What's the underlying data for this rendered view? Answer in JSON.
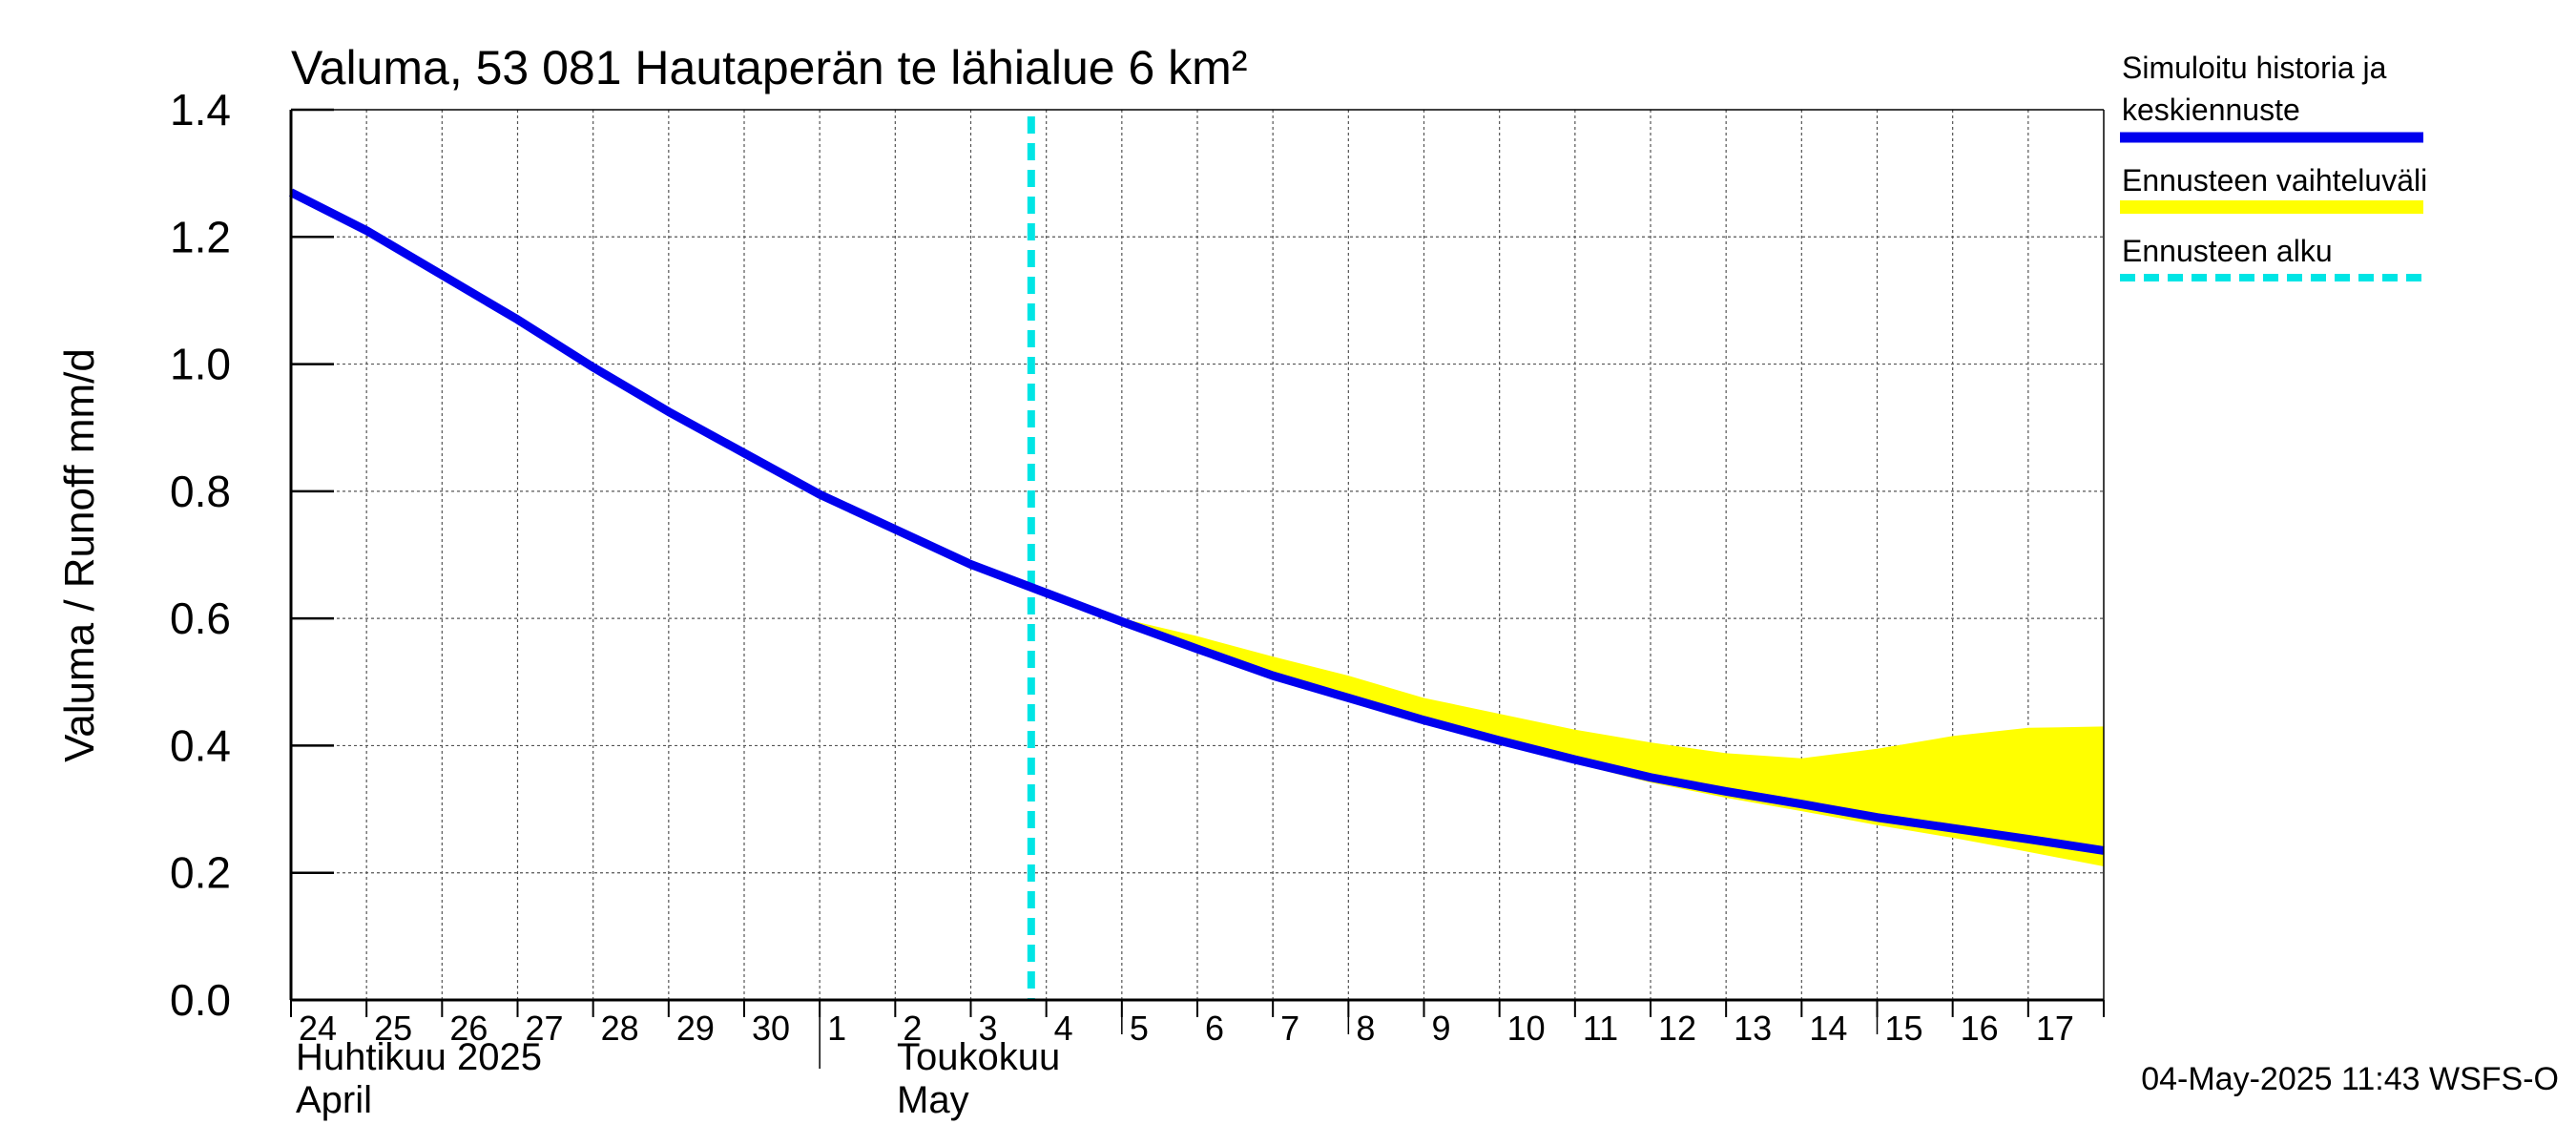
{
  "chart_data": {
    "type": "line",
    "title": "Valuma, 53 081 Hautaperän te lähialue 6 km²",
    "ylabel": "Valuma / Runoff    mm/d",
    "ylim": [
      0,
      1.4
    ],
    "yticks": [
      "0.0",
      "0.2",
      "0.4",
      "0.6",
      "0.8",
      "1.0",
      "1.2",
      "1.4"
    ],
    "x_day_labels": [
      "24",
      "25",
      "26",
      "27",
      "28",
      "29",
      "30",
      "1",
      "2",
      "3",
      "4",
      "5",
      "6",
      "7",
      "8",
      "9",
      "10",
      "11",
      "12",
      "13",
      "14",
      "15",
      "16",
      "17"
    ],
    "month_labels": [
      {
        "fi": "Huhtikuu  2025",
        "en": "April"
      },
      {
        "fi": "Toukokuu",
        "en": "May"
      }
    ],
    "forecast_start_day_index": 9.8,
    "series": [
      {
        "name": "Simuloitu historia ja keskiennuste",
        "color": "#0000ee",
        "x": [
          0,
          1,
          2,
          3,
          4,
          5,
          6,
          7,
          8,
          9,
          10,
          11,
          12,
          13,
          14,
          15,
          16,
          17,
          18,
          19,
          20,
          21,
          22,
          23,
          24
        ],
        "values": [
          1.27,
          1.21,
          1.14,
          1.07,
          0.995,
          0.925,
          0.86,
          0.795,
          0.74,
          0.685,
          0.64,
          0.595,
          0.552,
          0.51,
          0.475,
          0.44,
          0.408,
          0.378,
          0.35,
          0.328,
          0.308,
          0.287,
          0.27,
          0.253,
          0.235
        ]
      }
    ],
    "band": {
      "name": "Ennusteen vaihteluväli",
      "color": "#ffff00",
      "x": [
        10,
        11,
        12,
        13,
        14,
        15,
        16,
        17,
        18,
        19,
        20,
        21,
        22,
        23,
        24
      ],
      "upper": [
        0.64,
        0.6,
        0.572,
        0.54,
        0.51,
        0.475,
        0.45,
        0.425,
        0.405,
        0.388,
        0.38,
        0.395,
        0.415,
        0.428,
        0.43
      ],
      "lower": [
        0.64,
        0.595,
        0.55,
        0.508,
        0.47,
        0.435,
        0.403,
        0.372,
        0.342,
        0.318,
        0.297,
        0.275,
        0.255,
        0.233,
        0.21
      ]
    },
    "legend": [
      {
        "label_line1": "Simuloitu historia ja",
        "label_line2": "keskiennuste",
        "color": "#0000ee",
        "style": "solid"
      },
      {
        "label_line1": "Ennusteen vaihteluväli",
        "label_line2": "",
        "color": "#ffff00",
        "style": "band"
      },
      {
        "label_line1": "Ennusteen alku",
        "label_line2": "",
        "color": "#00e5e5",
        "style": "dashed"
      }
    ],
    "footer": "04-May-2025 11:43 WSFS-O",
    "grid": true
  }
}
